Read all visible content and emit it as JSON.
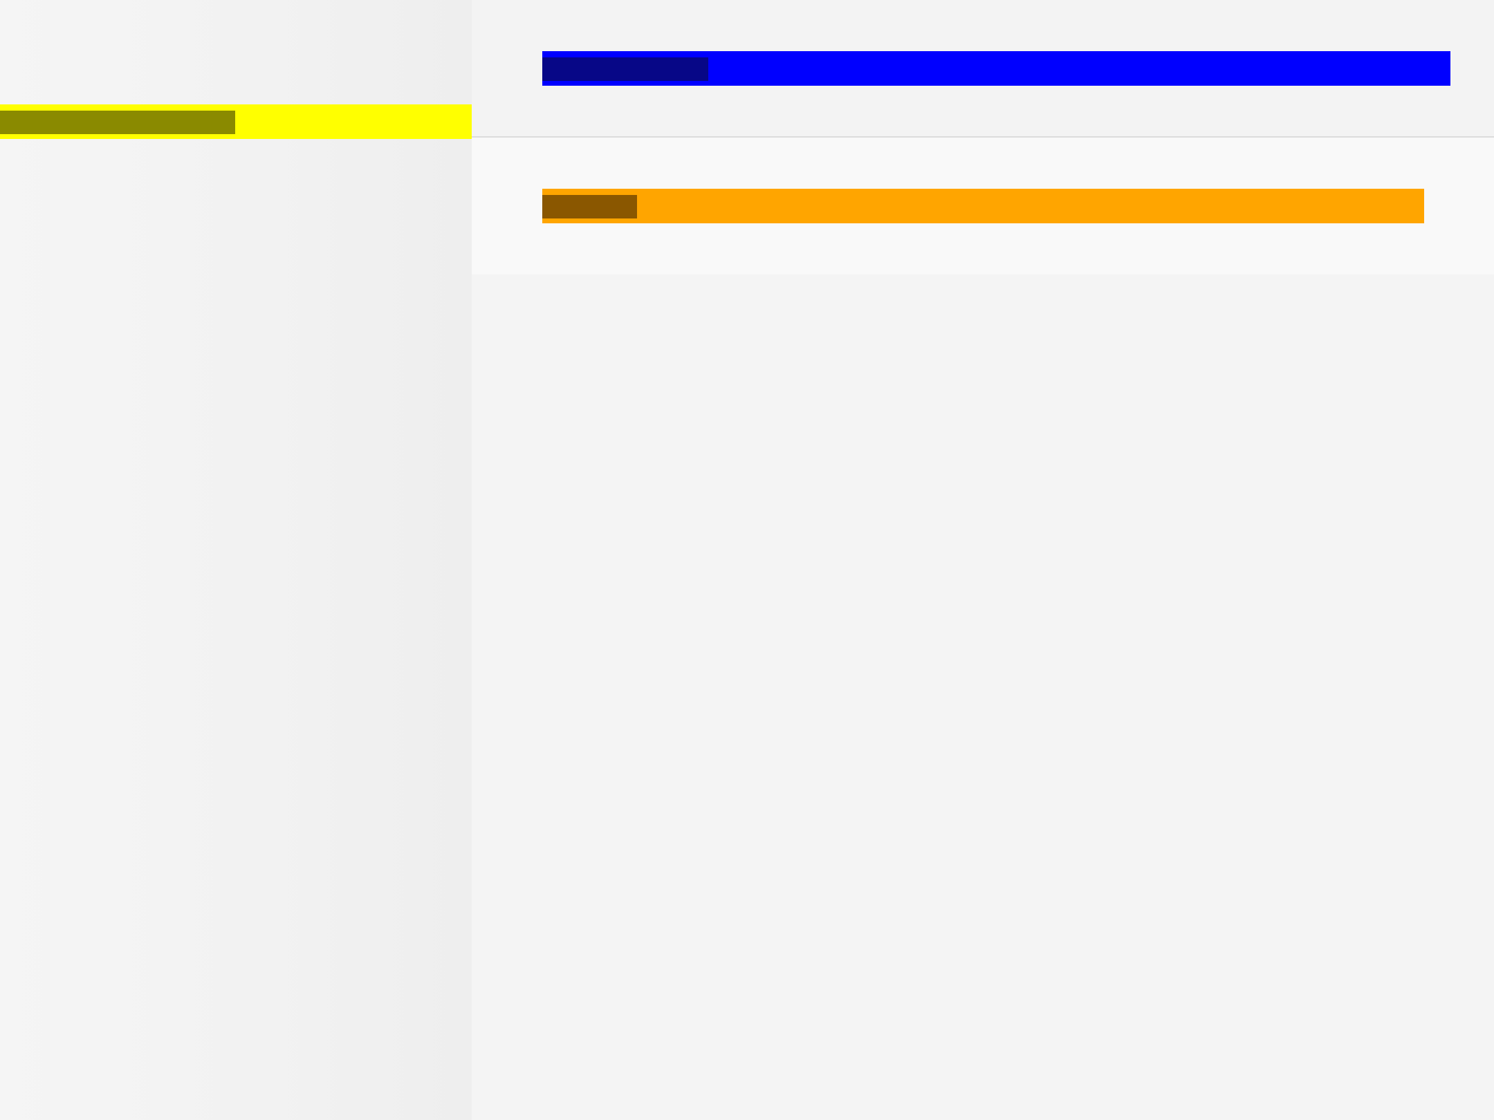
{
  "colors": {
    "sidebar_highlight": "#ffff00",
    "sidebar_highlight_label": "#8a8a00",
    "header_bar": "#0000ff",
    "header_bar_label": "#070787",
    "panel_bar": "#ffa500",
    "panel_bar_label": "#8a5700",
    "background": "#f4f4f4"
  },
  "sidebar": {
    "items": [
      {
        "label": ""
      }
    ]
  },
  "header": {
    "bar_label": ""
  },
  "main": {
    "panel": {
      "bar_label": ""
    }
  }
}
